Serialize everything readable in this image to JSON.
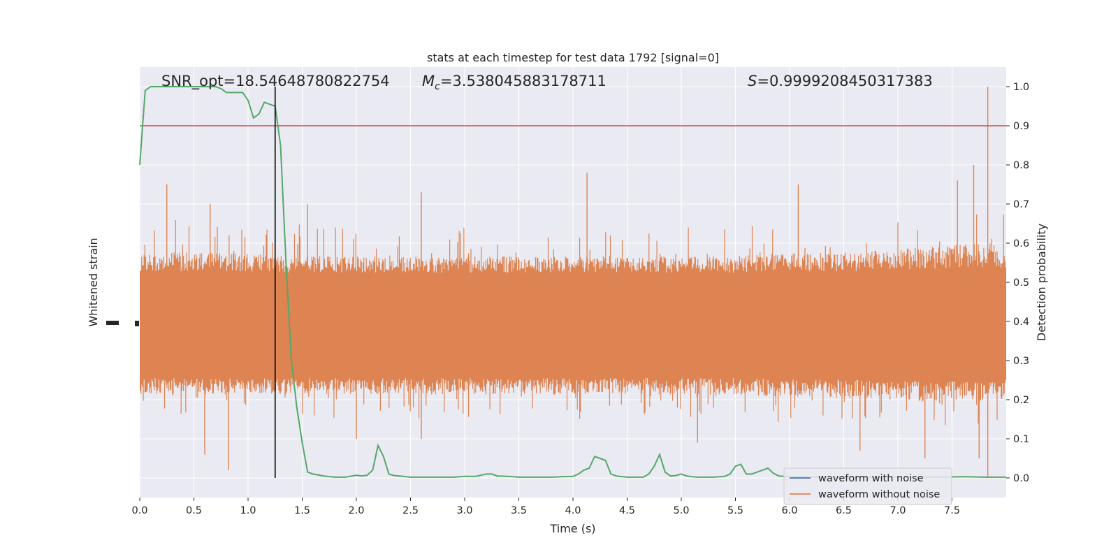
{
  "chart_data": {
    "type": "line",
    "title": "stats at each timestep for test data 1792 [signal=0]",
    "xlabel": "Time (s)",
    "ylabel_left": "Whitened strain",
    "ylabel_right": "Detection probability",
    "xlim": [
      0,
      8
    ],
    "ylim_right": [
      -0.05,
      1.05
    ],
    "x_ticks": [
      "0.0",
      "0.5",
      "1.0",
      "1.5",
      "2.0",
      "2.5",
      "3.0",
      "3.5",
      "4.0",
      "4.5",
      "5.0",
      "5.5",
      "6.0",
      "6.5",
      "7.0",
      "7.5"
    ],
    "y_ticks_right": [
      "0.0",
      "0.1",
      "0.2",
      "0.3",
      "0.4",
      "0.5",
      "0.6",
      "0.7",
      "0.8",
      "0.9",
      "1.0"
    ],
    "grid": true,
    "legend_position": "lower-right",
    "annotations": {
      "snr": "SNR_opt=18.54648780822754",
      "mc_symbol": "M",
      "mc_sub": "c",
      "mc_value": "=3.538045883178711",
      "s_symbol": "S",
      "s_value": "=0.9999208450317383"
    },
    "threshold": 0.9,
    "vline_x": 1.25,
    "colors": {
      "with_noise": "#4c72b0",
      "without_noise": "#dd8452",
      "probability": "#55a868",
      "threshold": "#c44e52",
      "vline": "#000000",
      "axes_bg": "#eaeaf2"
    },
    "series": [
      {
        "name": "waveform with noise",
        "role": "strain"
      },
      {
        "name": "waveform without noise",
        "role": "strain"
      }
    ],
    "strain_envelope": {
      "t": [
        0.0,
        0.25,
        0.5,
        0.75,
        1.0,
        1.25,
        1.5,
        2.0,
        2.5,
        3.0,
        3.5,
        4.0,
        4.5,
        5.0,
        5.5,
        6.0,
        6.5,
        7.0,
        7.5,
        7.8,
        8.0
      ],
      "typical_top": [
        0.58,
        0.58,
        0.58,
        0.58,
        0.58,
        0.57,
        0.57,
        0.57,
        0.57,
        0.57,
        0.57,
        0.57,
        0.57,
        0.57,
        0.57,
        0.58,
        0.58,
        0.59,
        0.6,
        0.61,
        0.6
      ],
      "typical_bottom": [
        0.21,
        0.21,
        0.21,
        0.21,
        0.21,
        0.21,
        0.21,
        0.21,
        0.21,
        0.21,
        0.21,
        0.21,
        0.21,
        0.21,
        0.21,
        0.2,
        0.2,
        0.19,
        0.19,
        0.19,
        0.2
      ],
      "core_top": 0.5,
      "core_bottom": 0.28
    },
    "strain_spikes": [
      {
        "t": 0.25,
        "value": 0.75
      },
      {
        "t": 0.65,
        "value": 0.7
      },
      {
        "t": 0.82,
        "value": 0.02
      },
      {
        "t": 0.6,
        "value": 0.06
      },
      {
        "t": 1.55,
        "value": 0.7
      },
      {
        "t": 2.0,
        "value": 0.1
      },
      {
        "t": 2.6,
        "value": 0.73
      },
      {
        "t": 2.6,
        "value": 0.1
      },
      {
        "t": 4.13,
        "value": 0.78
      },
      {
        "t": 5.15,
        "value": 0.09
      },
      {
        "t": 6.08,
        "value": 0.75
      },
      {
        "t": 6.65,
        "value": 0.07
      },
      {
        "t": 7.25,
        "value": 0.05
      },
      {
        "t": 7.55,
        "value": 0.76
      },
      {
        "t": 7.7,
        "value": 0.8
      },
      {
        "t": 7.75,
        "value": 0.05
      },
      {
        "t": 7.83,
        "value": 1.0
      },
      {
        "t": 7.83,
        "value": 0.0
      }
    ],
    "probability": {
      "t": [
        0.0,
        0.05,
        0.1,
        0.15,
        0.2,
        0.3,
        0.4,
        0.5,
        0.55,
        0.6,
        0.65,
        0.7,
        0.75,
        0.8,
        0.85,
        0.9,
        0.95,
        1.0,
        1.05,
        1.1,
        1.15,
        1.2,
        1.25,
        1.3,
        1.35,
        1.4,
        1.45,
        1.5,
        1.55,
        1.6,
        1.7,
        1.8,
        1.9,
        2.0,
        2.05,
        2.1,
        2.15,
        2.2,
        2.25,
        2.3,
        2.35,
        2.4,
        2.5,
        2.6,
        2.7,
        2.8,
        2.9,
        3.0,
        3.1,
        3.2,
        3.25,
        3.3,
        3.4,
        3.5,
        3.6,
        3.7,
        3.8,
        3.9,
        4.0,
        4.05,
        4.1,
        4.15,
        4.2,
        4.25,
        4.3,
        4.35,
        4.4,
        4.5,
        4.6,
        4.65,
        4.7,
        4.75,
        4.8,
        4.85,
        4.9,
        4.95,
        5.0,
        5.05,
        5.1,
        5.15,
        5.2,
        5.3,
        5.4,
        5.45,
        5.5,
        5.55,
        5.6,
        5.65,
        5.7,
        5.75,
        5.8,
        5.85,
        5.9,
        6.0,
        6.1,
        6.2,
        6.3,
        6.4,
        6.5,
        6.6,
        6.8,
        7.0,
        7.2,
        7.4,
        7.6,
        7.8,
        8.0
      ],
      "values": [
        0.8,
        0.99,
        1.0,
        1.0,
        1.0,
        1.0,
        1.0,
        1.0,
        1.0,
        1.0,
        1.0,
        1.0,
        0.995,
        0.985,
        0.985,
        0.985,
        0.985,
        0.965,
        0.92,
        0.93,
        0.96,
        0.955,
        0.95,
        0.85,
        0.55,
        0.3,
        0.18,
        0.09,
        0.015,
        0.01,
        0.005,
        0.002,
        0.002,
        0.007,
        0.005,
        0.007,
        0.02,
        0.083,
        0.055,
        0.01,
        0.006,
        0.005,
        0.002,
        0.002,
        0.002,
        0.002,
        0.002,
        0.004,
        0.004,
        0.01,
        0.01,
        0.005,
        0.004,
        0.002,
        0.002,
        0.002,
        0.002,
        0.003,
        0.004,
        0.01,
        0.02,
        0.025,
        0.055,
        0.05,
        0.045,
        0.01,
        0.005,
        0.002,
        0.002,
        0.002,
        0.01,
        0.03,
        0.06,
        0.015,
        0.005,
        0.006,
        0.01,
        0.005,
        0.003,
        0.002,
        0.002,
        0.002,
        0.004,
        0.01,
        0.03,
        0.035,
        0.01,
        0.01,
        0.015,
        0.02,
        0.025,
        0.012,
        0.005,
        0.003,
        0.003,
        0.002,
        0.002,
        0.002,
        0.002,
        0.002,
        0.002,
        0.002,
        0.002,
        0.002,
        0.003,
        0.002,
        0.002
      ]
    }
  }
}
